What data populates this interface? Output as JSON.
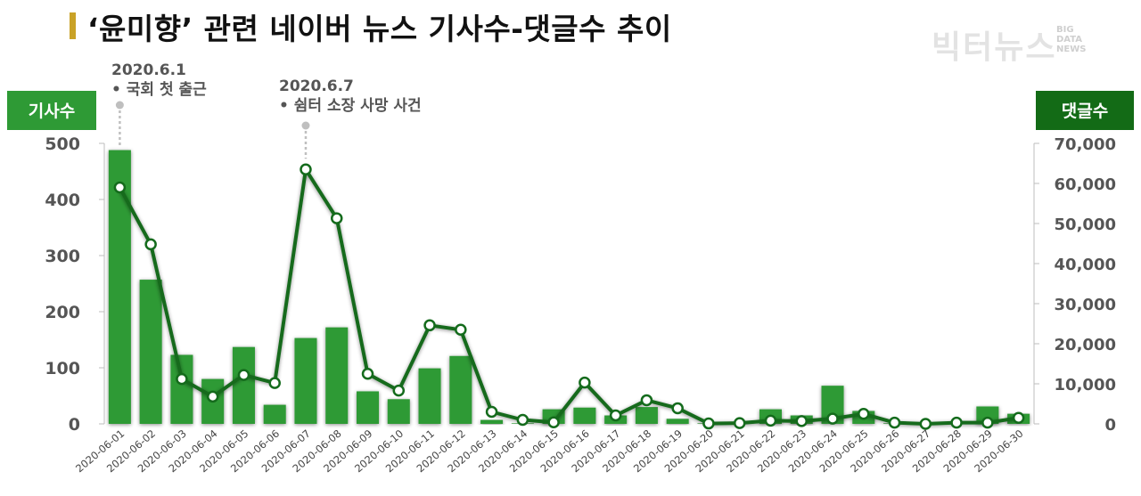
{
  "title": "‘윤미향’ 관련 네이버 뉴스 기사수-댓글수 추이",
  "brand": {
    "name": "빅터뉴스",
    "sub": [
      "BIG",
      "DATA",
      "NEWS"
    ]
  },
  "colors": {
    "bar": "#2e9a35",
    "line": "#146b1c",
    "left_badge": "#2e9a35",
    "right_badge": "#136b16",
    "title_accent": "#c9a227"
  },
  "chart_data": {
    "type": "bar+line",
    "categories": [
      "2020-06-01",
      "2020-06-02",
      "2020-06-03",
      "2020-06-04",
      "2020-06-05",
      "2020-06-06",
      "2020-06-07",
      "2020-06-08",
      "2020-06-09",
      "2020-06-10",
      "2020-06-11",
      "2020-06-12",
      "2020-06-13",
      "2020-06-14",
      "2020-06-15",
      "2020-06-16",
      "2020-06-17",
      "2020-06-18",
      "2020-06-19",
      "2020-06-20",
      "2020-06-21",
      "2020-06-22",
      "2020-06-23",
      "2020-06-24",
      "2020-06-25",
      "2020-06-26",
      "2020-06-27",
      "2020-06-28",
      "2020-06-29",
      "2020-06-30"
    ],
    "left_axis": {
      "label": "기사수",
      "ylim": [
        0,
        500
      ],
      "ticks": [
        "0",
        "100",
        "200",
        "300",
        "400",
        "500"
      ]
    },
    "right_axis": {
      "label": "댓글수",
      "ylim": [
        0,
        70000
      ],
      "ticks": [
        "0",
        "10,000",
        "20,000",
        "30,000",
        "40,000",
        "50,000",
        "60,000",
        "70,000"
      ]
    },
    "series": [
      {
        "name": "기사수",
        "type": "bar",
        "axis": "left",
        "values": [
          488,
          257,
          123,
          80,
          137,
          34,
          153,
          172,
          58,
          44,
          99,
          121,
          7,
          1,
          26,
          29,
          15,
          30,
          9,
          1,
          1,
          26,
          15,
          68,
          23,
          1,
          1,
          1,
          31,
          18
        ]
      },
      {
        "name": "댓글수",
        "type": "line",
        "axis": "right",
        "values": [
          59000,
          44800,
          11200,
          6800,
          12200,
          10200,
          63500,
          51300,
          12500,
          8300,
          24600,
          23500,
          3000,
          1000,
          400,
          10300,
          2100,
          5900,
          3900,
          100,
          200,
          800,
          700,
          1300,
          2500,
          300,
          0,
          300,
          300,
          1500
        ]
      }
    ],
    "annotations": [
      {
        "category": "2020-06-01",
        "date": "2020.6.1",
        "text": "• 국회 첫 출근"
      },
      {
        "category": "2020-06-07",
        "date": "2020.6.7",
        "text": "• 쉼터 소장 사망 사건"
      }
    ]
  }
}
